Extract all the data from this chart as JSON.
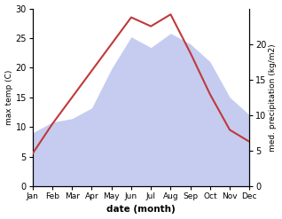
{
  "months": [
    "Jan",
    "Feb",
    "Mar",
    "Apr",
    "May",
    "Jun",
    "Jul",
    "Aug",
    "Sep",
    "Oct",
    "Nov",
    "Dec"
  ],
  "temp": [
    5.5,
    10.5,
    15.0,
    19.5,
    24.0,
    28.5,
    27.0,
    29.0,
    22.5,
    15.5,
    9.5,
    7.5
  ],
  "precip": [
    7.5,
    9.0,
    9.5,
    11.0,
    16.5,
    21.0,
    19.5,
    21.5,
    20.0,
    17.5,
    12.5,
    10.0
  ],
  "temp_color": "#c0393b",
  "precip_fill_color": "#c5ccf0",
  "precip_edge_color": "#b0b8e8",
  "temp_ylim": [
    0,
    30
  ],
  "precip_ylim": [
    0,
    25
  ],
  "right_yticks": [
    0,
    5,
    10,
    15,
    20
  ],
  "left_yticks": [
    0,
    5,
    10,
    15,
    20,
    25,
    30
  ],
  "ylabel_left": "max temp (C)",
  "ylabel_right": "med. precipitation (kg/m2)",
  "xlabel": "date (month)",
  "figsize": [
    3.18,
    2.47
  ],
  "dpi": 100,
  "bg_color": "#f0f0f0"
}
